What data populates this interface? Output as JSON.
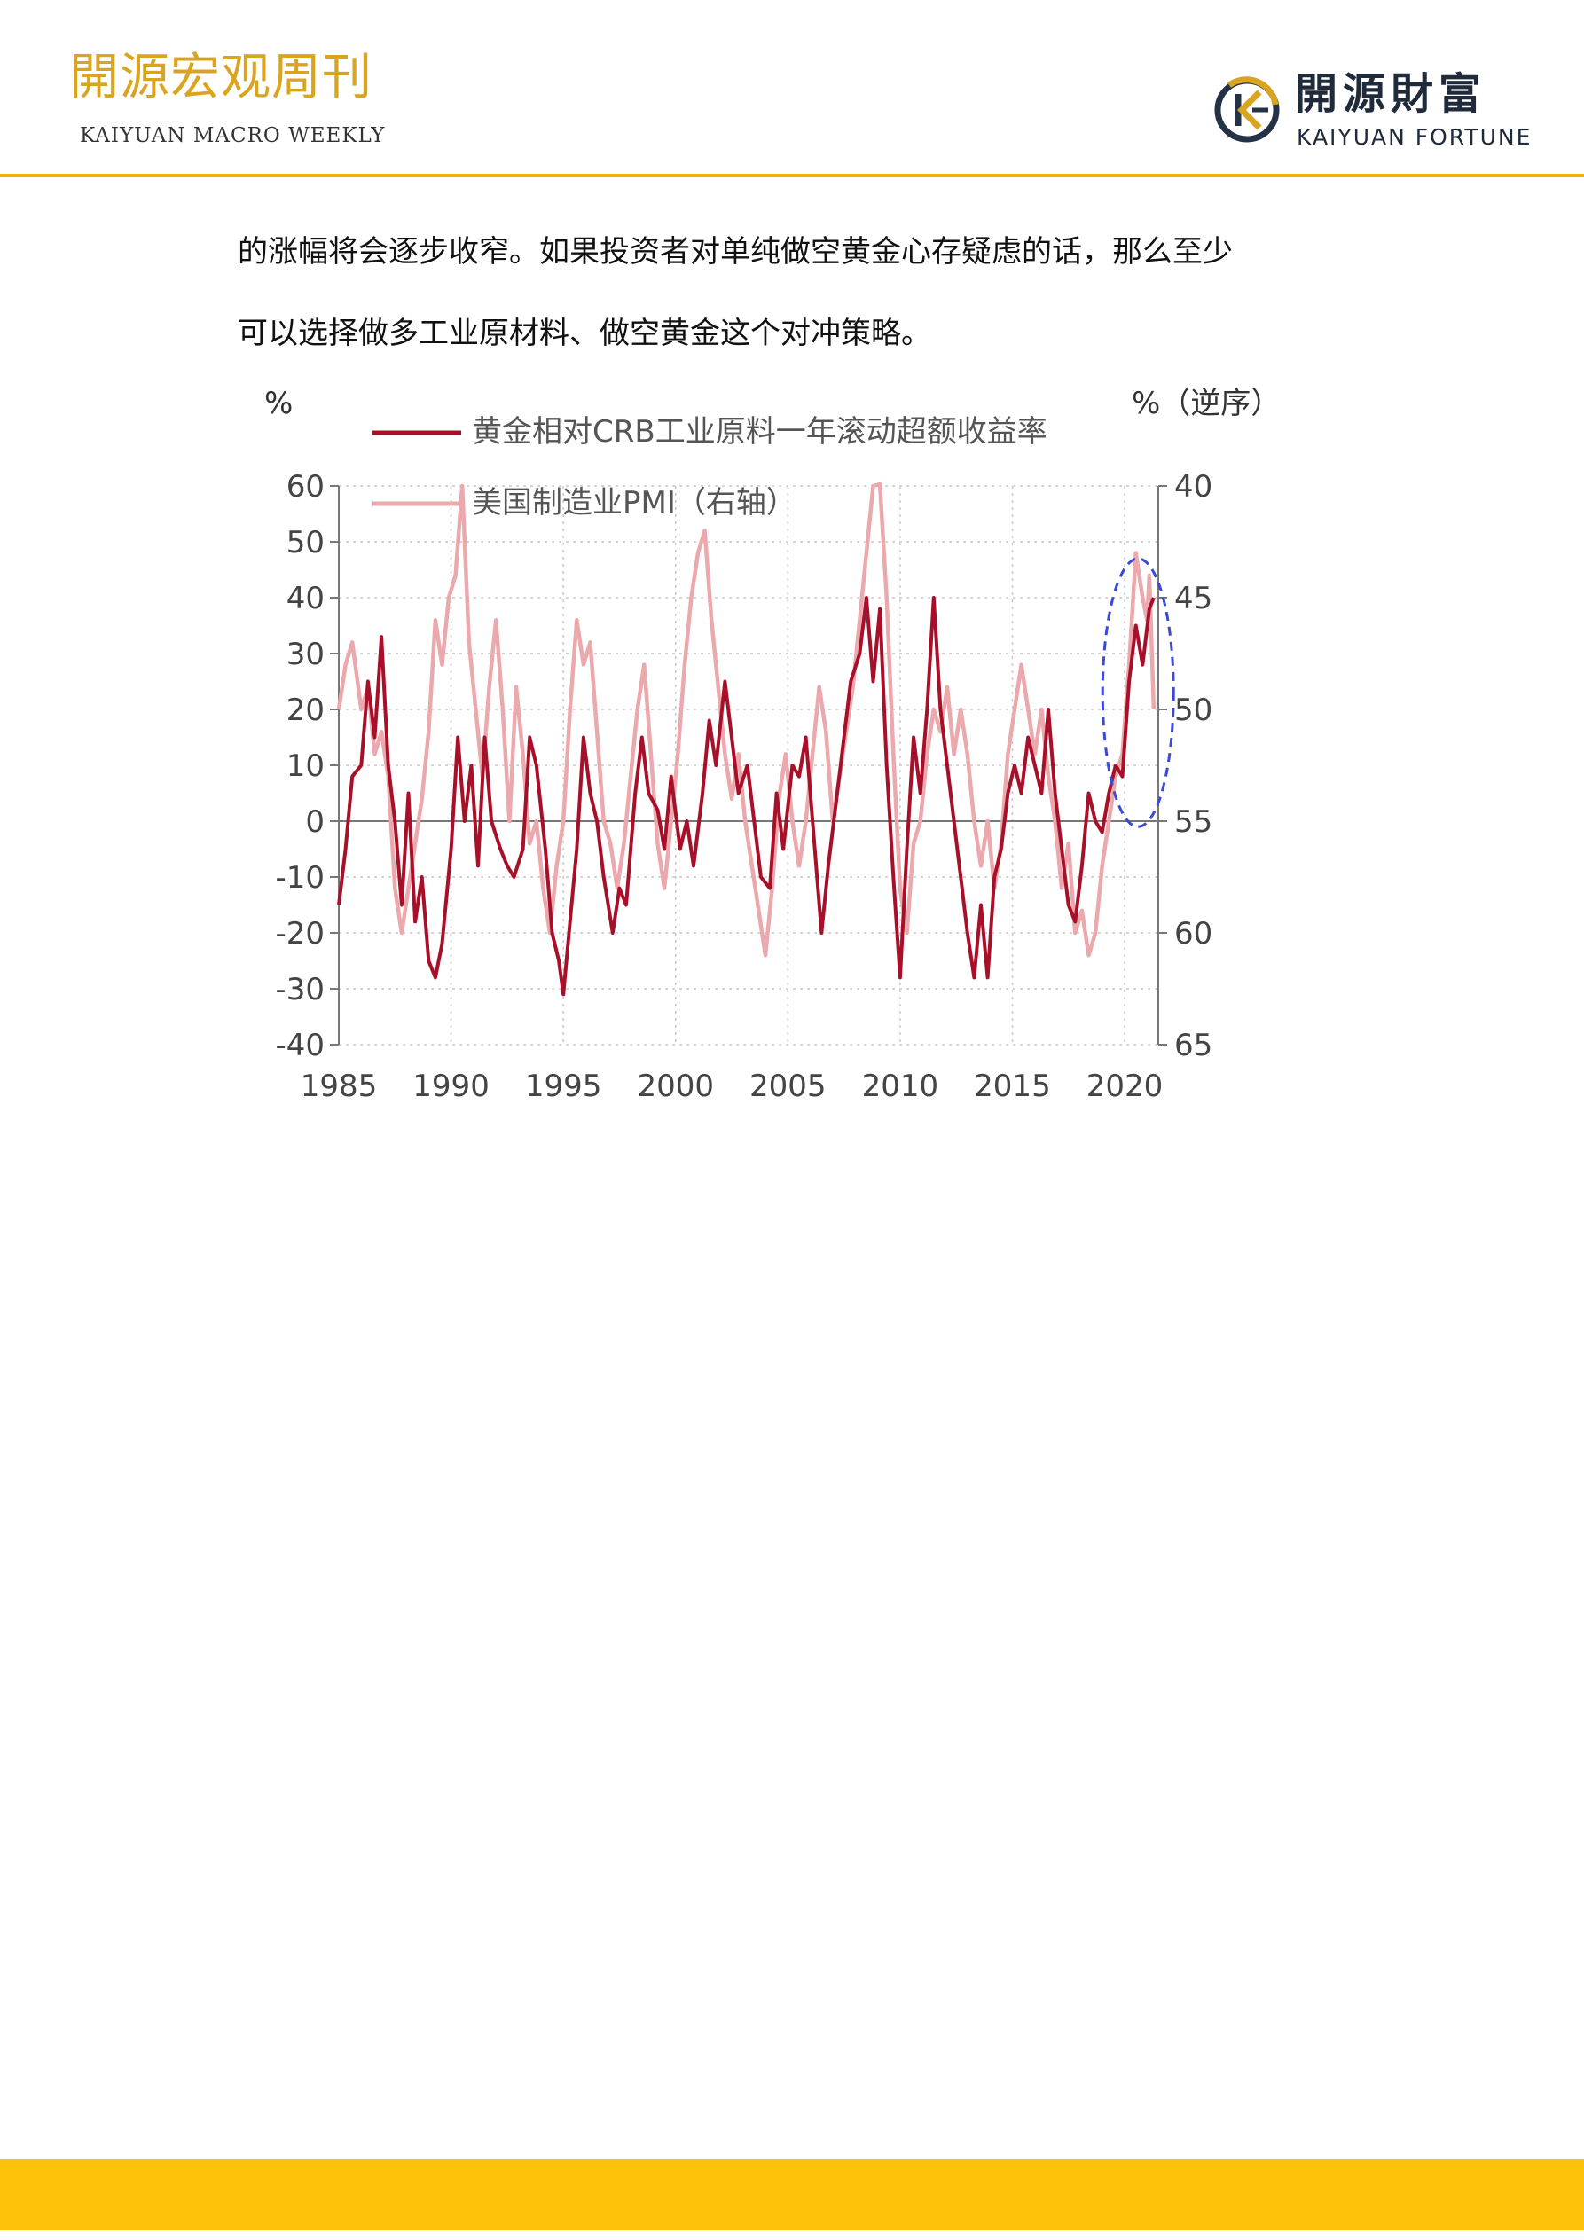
{
  "header": {
    "title_cn": "開源宏观周刊",
    "title_en": "KAIYUAN MACRO WEEKLY",
    "brand_cn": "開源財富",
    "brand_en": "KAIYUAN FORTUNE",
    "brand_logo_icon": "kaiyuan-k-logo-icon"
  },
  "body": {
    "line1": "的涨幅将会逐步收窄。如果投资者对单纯做空黄金心存疑虑的话，那么至少",
    "line2": "可以选择做多工业原材料、做空黄金这个对冲策略。"
  },
  "colors": {
    "accent": "#f0b400",
    "footer": "#fdc10a",
    "title_gold": "#d9a521",
    "series_dark": "#a8102a",
    "series_light": "#eba9ad",
    "highlight_ellipse": "#3a49d6"
  },
  "chart_data": {
    "type": "line",
    "left_unit": "%",
    "right_unit": "%（逆序）",
    "x_ticks": [
      1985,
      1990,
      1995,
      2000,
      2005,
      2010,
      2015,
      2020
    ],
    "xlim": [
      1985,
      2021.5
    ],
    "ylim_left": [
      -40,
      60
    ],
    "ylim_right": [
      65,
      40
    ],
    "right_axis_inverted": true,
    "left_ticks": [
      60,
      50,
      40,
      30,
      20,
      10,
      0,
      -10,
      -20,
      -30,
      -40
    ],
    "right_ticks": [
      40,
      45,
      50,
      55,
      60,
      65
    ],
    "grid": true,
    "legend_position": "top",
    "highlight_note": "dashed ellipse around 2020–2021",
    "series": [
      {
        "name": "黄金相对CRB工业原料一年滚动超额收益率",
        "axis": "left",
        "color": "#a8102a",
        "points": [
          [
            1985.0,
            -15
          ],
          [
            1985.3,
            -5
          ],
          [
            1985.6,
            8
          ],
          [
            1986.0,
            10
          ],
          [
            1986.3,
            25
          ],
          [
            1986.6,
            15
          ],
          [
            1986.9,
            33
          ],
          [
            1987.2,
            10
          ],
          [
            1987.5,
            0
          ],
          [
            1987.8,
            -15
          ],
          [
            1988.1,
            5
          ],
          [
            1988.4,
            -18
          ],
          [
            1988.7,
            -10
          ],
          [
            1989.0,
            -25
          ],
          [
            1989.3,
            -28
          ],
          [
            1989.6,
            -22
          ],
          [
            1990.0,
            -5
          ],
          [
            1990.3,
            15
          ],
          [
            1990.6,
            0
          ],
          [
            1990.9,
            10
          ],
          [
            1991.2,
            -8
          ],
          [
            1991.5,
            15
          ],
          [
            1991.8,
            0
          ],
          [
            1992.2,
            -5
          ],
          [
            1992.5,
            -8
          ],
          [
            1992.8,
            -10
          ],
          [
            1993.2,
            -5
          ],
          [
            1993.5,
            15
          ],
          [
            1993.8,
            10
          ],
          [
            1994.2,
            -5
          ],
          [
            1994.5,
            -20
          ],
          [
            1994.8,
            -25
          ],
          [
            1995.0,
            -31
          ],
          [
            1995.3,
            -18
          ],
          [
            1995.6,
            -5
          ],
          [
            1995.9,
            15
          ],
          [
            1996.2,
            5
          ],
          [
            1996.5,
            0
          ],
          [
            1996.8,
            -10
          ],
          [
            1997.2,
            -20
          ],
          [
            1997.5,
            -12
          ],
          [
            1997.8,
            -15
          ],
          [
            1998.2,
            5
          ],
          [
            1998.5,
            15
          ],
          [
            1998.8,
            5
          ],
          [
            1999.2,
            2
          ],
          [
            1999.5,
            -5
          ],
          [
            1999.8,
            8
          ],
          [
            2000.2,
            -5
          ],
          [
            2000.5,
            0
          ],
          [
            2000.8,
            -8
          ],
          [
            2001.2,
            5
          ],
          [
            2001.5,
            18
          ],
          [
            2001.8,
            10
          ],
          [
            2002.2,
            25
          ],
          [
            2002.5,
            15
          ],
          [
            2002.8,
            5
          ],
          [
            2003.2,
            10
          ],
          [
            2003.5,
            0
          ],
          [
            2003.8,
            -10
          ],
          [
            2004.2,
            -12
          ],
          [
            2004.5,
            5
          ],
          [
            2004.8,
            -5
          ],
          [
            2005.2,
            10
          ],
          [
            2005.5,
            8
          ],
          [
            2005.8,
            15
          ],
          [
            2006.2,
            -5
          ],
          [
            2006.5,
            -20
          ],
          [
            2006.8,
            -8
          ],
          [
            2007.2,
            5
          ],
          [
            2007.5,
            15
          ],
          [
            2007.8,
            25
          ],
          [
            2008.2,
            30
          ],
          [
            2008.5,
            40
          ],
          [
            2008.8,
            25
          ],
          [
            2009.1,
            38
          ],
          [
            2009.4,
            10
          ],
          [
            2009.7,
            -10
          ],
          [
            2010.0,
            -28
          ],
          [
            2010.3,
            -5
          ],
          [
            2010.6,
            15
          ],
          [
            2010.9,
            5
          ],
          [
            2011.2,
            20
          ],
          [
            2011.5,
            40
          ],
          [
            2011.8,
            20
          ],
          [
            2012.1,
            10
          ],
          [
            2012.4,
            0
          ],
          [
            2012.7,
            -10
          ],
          [
            2013.0,
            -20
          ],
          [
            2013.3,
            -28
          ],
          [
            2013.6,
            -15
          ],
          [
            2013.9,
            -28
          ],
          [
            2014.2,
            -10
          ],
          [
            2014.5,
            -5
          ],
          [
            2014.8,
            5
          ],
          [
            2015.1,
            10
          ],
          [
            2015.4,
            5
          ],
          [
            2015.7,
            15
          ],
          [
            2016.0,
            10
          ],
          [
            2016.3,
            5
          ],
          [
            2016.6,
            20
          ],
          [
            2016.9,
            5
          ],
          [
            2017.2,
            -5
          ],
          [
            2017.5,
            -15
          ],
          [
            2017.8,
            -18
          ],
          [
            2018.1,
            -8
          ],
          [
            2018.4,
            5
          ],
          [
            2018.7,
            0
          ],
          [
            2019.0,
            -2
          ],
          [
            2019.3,
            5
          ],
          [
            2019.6,
            10
          ],
          [
            2019.9,
            8
          ],
          [
            2020.2,
            25
          ],
          [
            2020.5,
            35
          ],
          [
            2020.8,
            28
          ],
          [
            2021.1,
            38
          ],
          [
            2021.3,
            40
          ]
        ]
      },
      {
        "name": "美国制造业PMI（右轴）",
        "axis": "right",
        "color": "#eba9ad",
        "points": [
          [
            1985.0,
            50
          ],
          [
            1985.3,
            48
          ],
          [
            1985.6,
            47
          ],
          [
            1986.0,
            50
          ],
          [
            1986.3,
            49
          ],
          [
            1986.6,
            52
          ],
          [
            1986.9,
            51
          ],
          [
            1987.2,
            53
          ],
          [
            1987.5,
            58
          ],
          [
            1987.8,
            60
          ],
          [
            1988.1,
            58
          ],
          [
            1988.4,
            56
          ],
          [
            1988.7,
            54
          ],
          [
            1989.0,
            51
          ],
          [
            1989.3,
            46
          ],
          [
            1989.6,
            48
          ],
          [
            1989.9,
            45
          ],
          [
            1990.2,
            44
          ],
          [
            1990.5,
            40
          ],
          [
            1990.8,
            47
          ],
          [
            1991.1,
            50
          ],
          [
            1991.4,
            53
          ],
          [
            1991.7,
            49
          ],
          [
            1992.0,
            46
          ],
          [
            1992.3,
            50
          ],
          [
            1992.6,
            55
          ],
          [
            1992.9,
            49
          ],
          [
            1993.2,
            52
          ],
          [
            1993.5,
            56
          ],
          [
            1993.8,
            55
          ],
          [
            1994.1,
            58
          ],
          [
            1994.4,
            60
          ],
          [
            1994.7,
            57
          ],
          [
            1995.0,
            55
          ],
          [
            1995.3,
            50
          ],
          [
            1995.6,
            46
          ],
          [
            1995.9,
            48
          ],
          [
            1996.2,
            47
          ],
          [
            1996.5,
            51
          ],
          [
            1996.8,
            55
          ],
          [
            1997.1,
            56
          ],
          [
            1997.4,
            58
          ],
          [
            1997.7,
            56
          ],
          [
            1998.0,
            53
          ],
          [
            1998.3,
            50
          ],
          [
            1998.6,
            48
          ],
          [
            1998.9,
            52
          ],
          [
            1999.2,
            56
          ],
          [
            1999.5,
            58
          ],
          [
            1999.8,
            55
          ],
          [
            2000.1,
            52
          ],
          [
            2000.4,
            48
          ],
          [
            2000.7,
            45
          ],
          [
            2001.0,
            43
          ],
          [
            2001.3,
            42
          ],
          [
            2001.6,
            46
          ],
          [
            2001.9,
            49
          ],
          [
            2002.2,
            52
          ],
          [
            2002.5,
            54
          ],
          [
            2002.8,
            52
          ],
          [
            2003.1,
            55
          ],
          [
            2003.4,
            57
          ],
          [
            2003.7,
            59
          ],
          [
            2004.0,
            61
          ],
          [
            2004.3,
            58
          ],
          [
            2004.6,
            54
          ],
          [
            2004.9,
            52
          ],
          [
            2005.2,
            55
          ],
          [
            2005.5,
            57
          ],
          [
            2005.8,
            55
          ],
          [
            2006.1,
            52
          ],
          [
            2006.4,
            49
          ],
          [
            2006.7,
            51
          ],
          [
            2007.0,
            55
          ],
          [
            2007.3,
            53
          ],
          [
            2007.6,
            51
          ],
          [
            2007.9,
            49
          ],
          [
            2008.2,
            46
          ],
          [
            2008.5,
            43
          ],
          [
            2008.8,
            40
          ],
          [
            2009.1,
            38
          ],
          [
            2009.4,
            45
          ],
          [
            2009.7,
            52
          ],
          [
            2010.0,
            58
          ],
          [
            2010.3,
            60
          ],
          [
            2010.6,
            56
          ],
          [
            2010.9,
            55
          ],
          [
            2011.2,
            52
          ],
          [
            2011.5,
            50
          ],
          [
            2011.8,
            51
          ],
          [
            2012.1,
            49
          ],
          [
            2012.4,
            52
          ],
          [
            2012.7,
            50
          ],
          [
            2013.0,
            52
          ],
          [
            2013.3,
            55
          ],
          [
            2013.6,
            57
          ],
          [
            2013.9,
            55
          ],
          [
            2014.2,
            58
          ],
          [
            2014.5,
            56
          ],
          [
            2014.8,
            52
          ],
          [
            2015.1,
            50
          ],
          [
            2015.4,
            48
          ],
          [
            2015.7,
            50
          ],
          [
            2016.0,
            52
          ],
          [
            2016.3,
            50
          ],
          [
            2016.6,
            53
          ],
          [
            2016.9,
            55
          ],
          [
            2017.2,
            58
          ],
          [
            2017.5,
            56
          ],
          [
            2017.8,
            60
          ],
          [
            2018.1,
            59
          ],
          [
            2018.4,
            61
          ],
          [
            2018.7,
            60
          ],
          [
            2019.0,
            57
          ],
          [
            2019.3,
            55
          ],
          [
            2019.6,
            53
          ],
          [
            2019.9,
            52
          ],
          [
            2020.2,
            48
          ],
          [
            2020.5,
            43
          ],
          [
            2020.8,
            45
          ],
          [
            2021.0,
            46
          ],
          [
            2021.1,
            44
          ],
          [
            2021.3,
            50
          ]
        ]
      }
    ]
  }
}
